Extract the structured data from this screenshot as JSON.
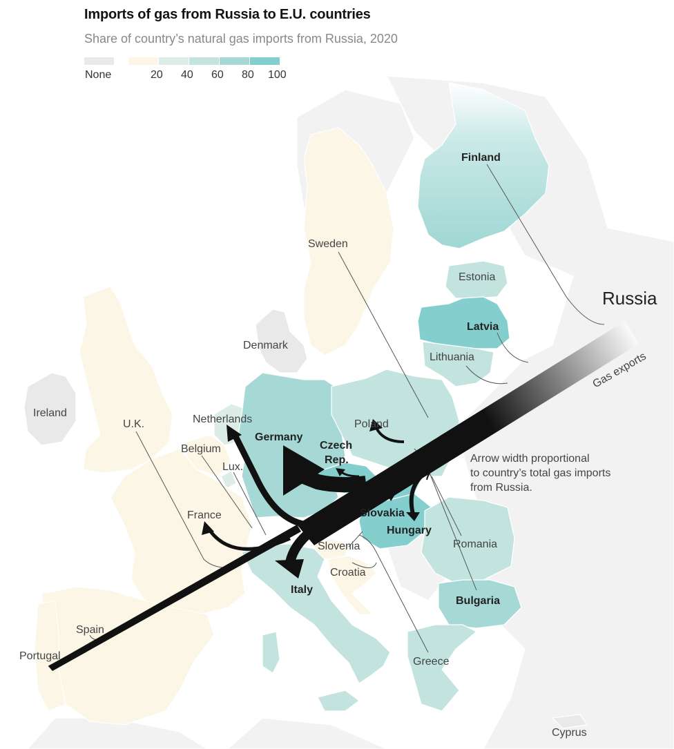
{
  "title": "Imports of gas from Russia to E.U. countries",
  "subtitle": "Share of country’s natural gas imports from Russia, 2020",
  "legend": {
    "none_label": "None",
    "ticks": [
      "20",
      "40",
      "60",
      "80",
      "100"
    ],
    "colors": {
      "none": "#e9e9e9",
      "b0_20": "#fbf6e6",
      "b20_40": "#dbede6",
      "b40_60": "#c2e3de",
      "b60_80": "#a6d9d6",
      "b80_100": "#85cece"
    }
  },
  "colors": {
    "land": "#f2f2f2",
    "arrow": "#111111",
    "leader_line": "#555555"
  },
  "source_label": "Russia",
  "pipeline_label": "Gas exports",
  "note": {
    "line1": "Arrow width proportional",
    "line2": "to country’s total gas imports",
    "line3": "from Russia."
  },
  "countries": [
    {
      "id": "finland",
      "label": "Finland",
      "bold": true,
      "share_pct": 90
    },
    {
      "id": "sweden",
      "label": "Sweden",
      "bold": false,
      "share_pct": 10
    },
    {
      "id": "estonia",
      "label": "Estonia",
      "bold": false,
      "share_pct": 50
    },
    {
      "id": "latvia",
      "label": "Latvia",
      "bold": true,
      "share_pct": 95
    },
    {
      "id": "lithuania",
      "label": "Lithuania",
      "bold": false,
      "share_pct": 45
    },
    {
      "id": "denmark",
      "label": "Denmark",
      "bold": false,
      "share_pct": null
    },
    {
      "id": "ireland",
      "label": "Ireland",
      "bold": false,
      "share_pct": null
    },
    {
      "id": "uk",
      "label": "U.K.",
      "bold": false,
      "share_pct": 10
    },
    {
      "id": "netherlands",
      "label": "Netherlands",
      "bold": false,
      "share_pct": 30
    },
    {
      "id": "belgium",
      "label": "Belgium",
      "bold": false,
      "share_pct": 10
    },
    {
      "id": "luxembourg",
      "label": "Lux.",
      "bold": false,
      "share_pct": 20
    },
    {
      "id": "germany",
      "label": "Germany",
      "bold": true,
      "share_pct": 65
    },
    {
      "id": "poland",
      "label": "Poland",
      "bold": false,
      "share_pct": 45
    },
    {
      "id": "czech",
      "label": "Czech\nRep.",
      "bold": true,
      "share_pct": 95
    },
    {
      "id": "slovakia",
      "label": "Slovakia",
      "bold": true,
      "share_pct": 85
    },
    {
      "id": "hungary",
      "label": "Hungary",
      "bold": true,
      "share_pct": 95
    },
    {
      "id": "romania",
      "label": "Romania",
      "bold": false,
      "share_pct": 45
    },
    {
      "id": "bulgaria",
      "label": "Bulgaria",
      "bold": true,
      "share_pct": 75
    },
    {
      "id": "france",
      "label": "France",
      "bold": false,
      "share_pct": 15
    },
    {
      "id": "slovenia",
      "label": "Slovenia",
      "bold": false,
      "share_pct": 10
    },
    {
      "id": "croatia",
      "label": "Croatia",
      "bold": false,
      "share_pct": 10
    },
    {
      "id": "italy",
      "label": "Italy",
      "bold": true,
      "share_pct": 45
    },
    {
      "id": "spain",
      "label": "Spain",
      "bold": false,
      "share_pct": 10
    },
    {
      "id": "portugal",
      "label": "Portugal",
      "bold": false,
      "share_pct": 10
    },
    {
      "id": "greece",
      "label": "Greece",
      "bold": false,
      "share_pct": 40
    },
    {
      "id": "cyprus",
      "label": "Cyprus",
      "bold": false,
      "share_pct": null
    }
  ]
}
